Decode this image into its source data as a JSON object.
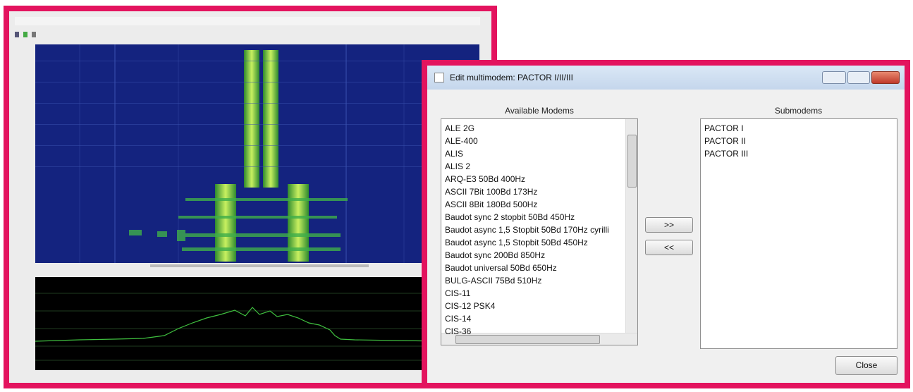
{
  "dialog": {
    "title": "Edit multimodem: PACTOR I/II/III",
    "available_label": "Available Modems",
    "submodems_label": "Submodems",
    "available": [
      "ALE 2G",
      "ALE-400",
      "ALIS",
      "ALIS 2",
      "ARQ-E3 50Bd 400Hz",
      "ASCII 7Bit 100Bd 173Hz",
      "ASCII 8Bit 180Bd 500Hz",
      "Baudot sync 2 stopbit 50Bd 450Hz",
      "Baudot async 1,5 Stopbit 50Bd 170Hz cyrilli",
      "Baudot async 1,5 Stopbit 50Bd 450Hz",
      "Baudot sync 200Bd 850Hz",
      "Baudot universal 50Bd 650Hz",
      "BULG-ASCII 75Bd 510Hz",
      "CIS-11",
      "CIS-12 PSK4",
      "CIS-14",
      "CIS-36"
    ],
    "submodems": [
      "PACTOR I",
      "PACTOR II",
      "PACTOR III"
    ],
    "add_button": ">>",
    "remove_button": "<<",
    "close_button": "Close"
  }
}
